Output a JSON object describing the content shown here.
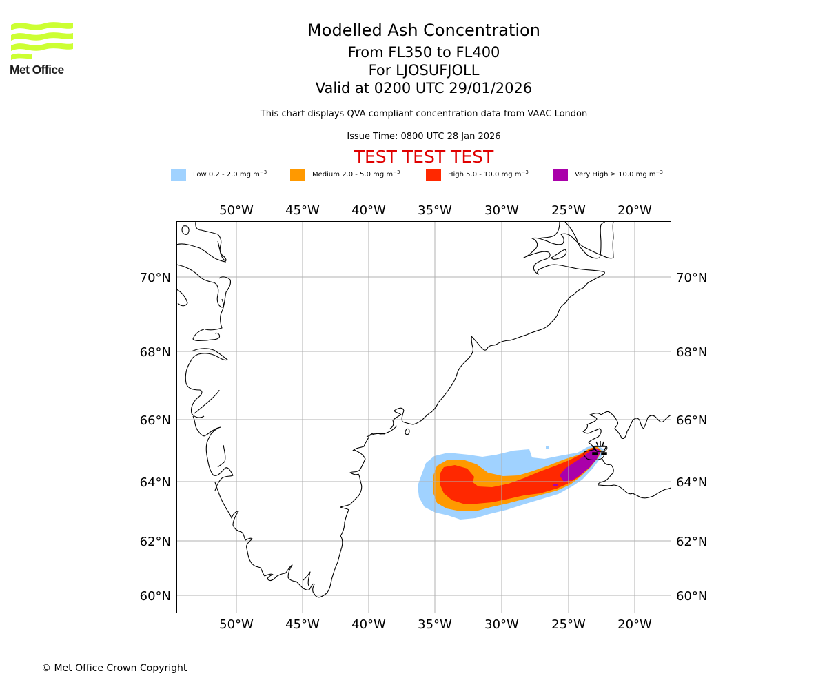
{
  "logo": {
    "name": "Met Office",
    "color": "#ccff33"
  },
  "header": {
    "title": "Modelled Ash Concentration",
    "level_range": "From FL350 to FL400",
    "volcano": "For LJOSUFJOLL",
    "valid_time": "Valid at 0200 UTC 29/01/2026",
    "description": "This chart displays QVA compliant concentration data from VAAC London",
    "issue_time": "Issue Time: 0800 UTC 28 Jan 2026",
    "test_banner": "TEST TEST TEST",
    "test_banner_color": "#e00000"
  },
  "legend": [
    {
      "level": "Low",
      "range": "0.2 - 2.0",
      "unit": "mg m",
      "exp": "−3",
      "color": "#a0d2ff"
    },
    {
      "level": "Medium",
      "range": "2.0 - 5.0",
      "unit": "mg m",
      "exp": "−3",
      "color": "#ff9900"
    },
    {
      "level": "High",
      "range": "5.0 - 10.0",
      "unit": "mg m",
      "exp": "−3",
      "color": "#ff2800"
    },
    {
      "level": "Very High",
      "range": "≥ 10.0",
      "unit": "mg m",
      "exp": "−3",
      "color": "#aa00aa"
    }
  ],
  "chart_data": {
    "type": "map",
    "title": "Modelled Ash Concentration",
    "projection": "conic (lat/lon graticule)",
    "grid": true,
    "lon_ticks": [
      "50°W",
      "45°W",
      "40°W",
      "35°W",
      "30°W",
      "25°W",
      "20°W"
    ],
    "lon_values": [
      -50,
      -45,
      -40,
      -35,
      -30,
      -25,
      -20
    ],
    "lat_ticks": [
      "70°N",
      "68°N",
      "66°N",
      "64°N",
      "62°N",
      "60°N"
    ],
    "lat_values": [
      70,
      68,
      66,
      64,
      62,
      60
    ],
    "extent": {
      "lon": [
        -54.5,
        -17.5
      ],
      "lat": [
        59.5,
        71.5
      ]
    },
    "source": {
      "name": "LJOSUFJOLL",
      "lon": -22.7,
      "lat": 64.9,
      "symbol": "volcano"
    },
    "plume": {
      "levels": [
        "Low",
        "Medium",
        "High",
        "Very High"
      ],
      "extent_lon": [
        -36.3,
        -22.3
      ],
      "extent_lat": [
        62.8,
        65.1
      ],
      "orientation": "extends WSW from the volcano over the Denmark Strait, with the tail curling back to the north-west near 34°W"
    },
    "coastlines": [
      "Greenland east coast",
      "Greenland south tip",
      "Greenland west coast",
      "Iceland"
    ]
  },
  "footer": {
    "copyright": "© Met Office Crown Copyright"
  }
}
